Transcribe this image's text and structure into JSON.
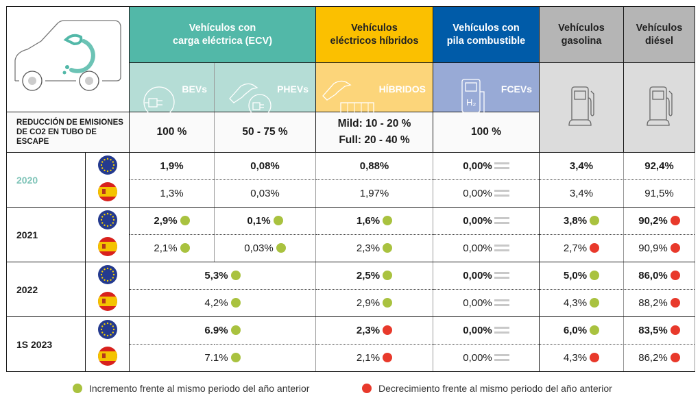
{
  "colors": {
    "ecv": "#52b8a8",
    "hybrid": "#fbc000",
    "fcev": "#005ba8",
    "gray": "#b5b5b5",
    "up": "#a9c23f",
    "down": "#e8392b",
    "equal": "#c8c8c8",
    "year_2020": "#7fc4b8"
  },
  "header": {
    "ecv": "Vehículos con\ncarga eléctrica (ECV)",
    "hybrid": "Vehículos\neléctricos híbridos",
    "fcev": "Vehículos con\npila combustible",
    "gasoline": "Vehículos\ngasolina",
    "diesel": "Vehículos\ndiésel",
    "sub": {
      "bev": "BEVs",
      "phev": "PHEVs",
      "hybrid": "HÍBRIDOS",
      "fcev": "FCEVs"
    },
    "reduction_label": "REDUCCIÓN DE EMISIONES DE CO2 EN TUBO DE ESCAPE",
    "reduction": {
      "bev": "100 %",
      "phev": "50 - 75 %",
      "hybrid_mild": "Mild: 10 - 20 %",
      "hybrid_full": "Full: 20 - 40 %",
      "fcev": "100 %"
    }
  },
  "years": [
    {
      "label": "2020",
      "rows": [
        {
          "region": "EU",
          "cells": [
            {
              "v": "1,9%"
            },
            {
              "v": "0,08%"
            },
            {
              "v": "0,88%"
            },
            {
              "v": "0,00%",
              "i": "equal"
            },
            {
              "v": "3,4%"
            },
            {
              "v": "92,4%"
            }
          ]
        },
        {
          "region": "ES",
          "cells": [
            {
              "v": "1,3%"
            },
            {
              "v": "0,03%"
            },
            {
              "v": "1,97%"
            },
            {
              "v": "0,00%",
              "i": "equal"
            },
            {
              "v": "3,4%"
            },
            {
              "v": "91,5%"
            }
          ]
        }
      ]
    },
    {
      "label": "2021",
      "rows": [
        {
          "region": "EU",
          "cells": [
            {
              "v": "2,9%",
              "i": "up"
            },
            {
              "v": "0,1%",
              "i": "up"
            },
            {
              "v": "1,6%",
              "i": "up"
            },
            {
              "v": "0,00%",
              "i": "equal"
            },
            {
              "v": "3,8%",
              "i": "up"
            },
            {
              "v": "90,2%",
              "i": "down"
            }
          ]
        },
        {
          "region": "ES",
          "cells": [
            {
              "v": "2,1%",
              "i": "up"
            },
            {
              "v": "0,03%",
              "i": "up"
            },
            {
              "v": "2,3%",
              "i": "up"
            },
            {
              "v": "0,00%",
              "i": "equal"
            },
            {
              "v": "2,7%",
              "i": "down"
            },
            {
              "v": "90,9%",
              "i": "down"
            }
          ]
        }
      ]
    },
    {
      "label": "2022",
      "rows": [
        {
          "region": "EU",
          "cells": [
            {
              "v": "5,3%",
              "i": "up",
              "span": 2
            },
            {
              "v": "2,5%",
              "i": "up"
            },
            {
              "v": "0,00%",
              "i": "equal"
            },
            {
              "v": "5,0%",
              "i": "up"
            },
            {
              "v": "86,0%",
              "i": "down"
            }
          ]
        },
        {
          "region": "ES",
          "cells": [
            {
              "v": "4,2%",
              "i": "up",
              "span": 2
            },
            {
              "v": "2,9%",
              "i": "up"
            },
            {
              "v": "0,00%",
              "i": "equal"
            },
            {
              "v": "4,3%",
              "i": "up"
            },
            {
              "v": "88,2%",
              "i": "down"
            }
          ]
        }
      ]
    },
    {
      "label": "1S 2023",
      "rows": [
        {
          "region": "EU",
          "cells": [
            {
              "v": "6.9%",
              "i": "up",
              "span": 2
            },
            {
              "v": "2,3%",
              "i": "down"
            },
            {
              "v": "0,00%",
              "i": "equal"
            },
            {
              "v": "6,0%",
              "i": "up"
            },
            {
              "v": "83,5%",
              "i": "down"
            }
          ]
        },
        {
          "region": "ES",
          "cells": [
            {
              "v": "7.1%",
              "i": "up",
              "span": 2
            },
            {
              "v": "2,1%",
              "i": "down"
            },
            {
              "v": "0,00%",
              "i": "equal"
            },
            {
              "v": "4,3%",
              "i": "down"
            },
            {
              "v": "86,2%",
              "i": "down"
            }
          ]
        }
      ]
    }
  ],
  "legend": {
    "up": "Incremento frente al mismo periodo del año anterior",
    "down": "Decrecimiento frente al mismo periodo del año anterior"
  }
}
